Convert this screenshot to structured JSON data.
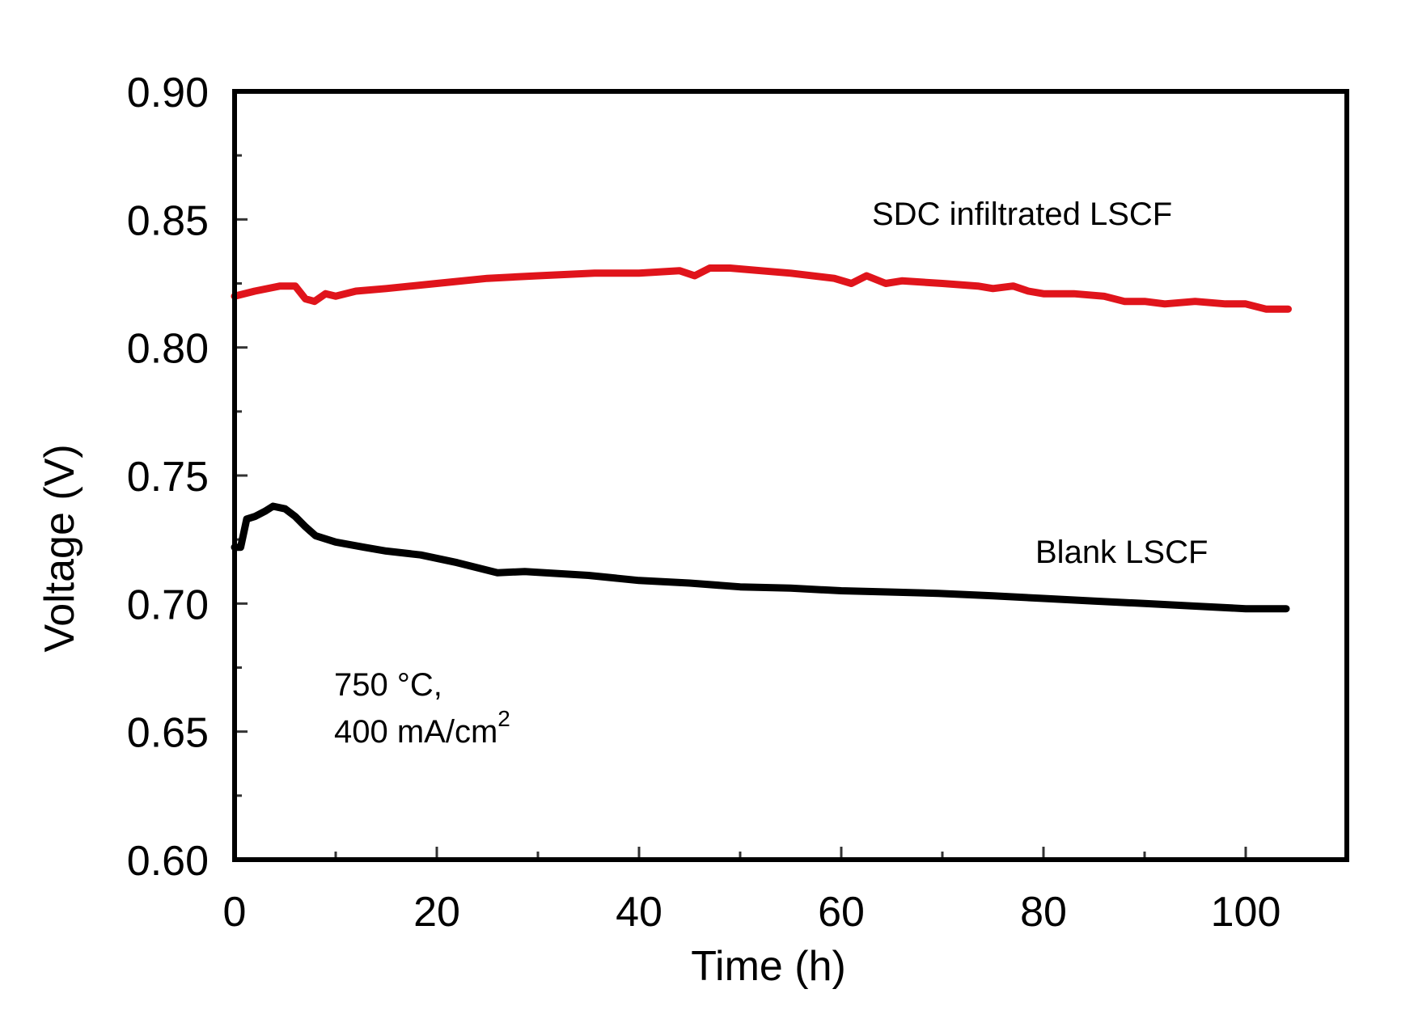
{
  "chart_data": {
    "type": "line",
    "title": "",
    "xlabel": "Time (h)",
    "ylabel": "Voltage (V)",
    "xlim": [
      0,
      110
    ],
    "ylim": [
      0.6,
      0.9
    ],
    "x_ticks": [
      0,
      20,
      40,
      60,
      80,
      100
    ],
    "x_tick_labels": [
      "0",
      "20",
      "40",
      "60",
      "80",
      "100"
    ],
    "x_minor_step": 10,
    "y_ticks": [
      0.6,
      0.65,
      0.7,
      0.75,
      0.8,
      0.85,
      0.9
    ],
    "y_tick_labels": [
      "0.60",
      "0.65",
      "0.70",
      "0.75",
      "0.80",
      "0.85",
      "0.90"
    ],
    "y_minor_step": 0.025,
    "grid": false,
    "legend": "none (curves labeled directly)",
    "series": [
      {
        "name": "SDC infiltrated LSCF",
        "color": "#e0141b",
        "x": [
          0,
          2,
          4.5,
          6,
          7,
          7.9,
          9,
          10,
          12,
          15,
          20,
          25,
          30,
          35.6,
          40,
          44,
          45.5,
          47,
          49,
          52,
          55,
          59.3,
          61,
          62.5,
          64.4,
          66,
          70,
          73.5,
          75,
          77,
          78.5,
          80,
          83,
          86,
          88,
          90,
          92,
          95,
          98,
          100,
          102,
          104.2
        ],
        "y": [
          0.82,
          0.822,
          0.824,
          0.824,
          0.819,
          0.818,
          0.821,
          0.82,
          0.822,
          0.823,
          0.825,
          0.827,
          0.828,
          0.829,
          0.829,
          0.83,
          0.828,
          0.831,
          0.831,
          0.83,
          0.829,
          0.827,
          0.825,
          0.828,
          0.825,
          0.826,
          0.825,
          0.824,
          0.823,
          0.824,
          0.822,
          0.821,
          0.821,
          0.82,
          0.818,
          0.818,
          0.817,
          0.818,
          0.817,
          0.817,
          0.815,
          0.815
        ]
      },
      {
        "name": "Blank LSCF",
        "color": "#000000",
        "x": [
          0,
          0.6,
          1.2,
          2,
          3,
          3.8,
          5,
          6,
          7,
          8,
          10,
          12.8,
          15,
          18.4,
          22,
          26,
          28.7,
          35,
          40,
          45,
          50,
          55,
          60,
          65,
          69.6,
          75,
          80,
          85,
          90,
          95,
          100,
          104
        ],
        "y": [
          0.722,
          0.722,
          0.733,
          0.734,
          0.736,
          0.738,
          0.737,
          0.734,
          0.73,
          0.7265,
          0.724,
          0.722,
          0.7205,
          0.719,
          0.716,
          0.712,
          0.7125,
          0.711,
          0.709,
          0.708,
          0.7065,
          0.706,
          0.705,
          0.7045,
          0.704,
          0.703,
          0.702,
          0.701,
          0.7,
          0.699,
          0.698,
          0.698
        ]
      }
    ],
    "annotations": [
      {
        "text": "SDC infiltrated LSCF",
        "x": 80,
        "y": 0.848
      },
      {
        "text": "Blank LSCF",
        "x": 90,
        "y": 0.72
      },
      {
        "text": "750 °C,",
        "x": 10,
        "y": 0.672
      },
      {
        "text": "400 mA/cm",
        "superscript": "2",
        "x": 10,
        "y": 0.653
      }
    ]
  }
}
